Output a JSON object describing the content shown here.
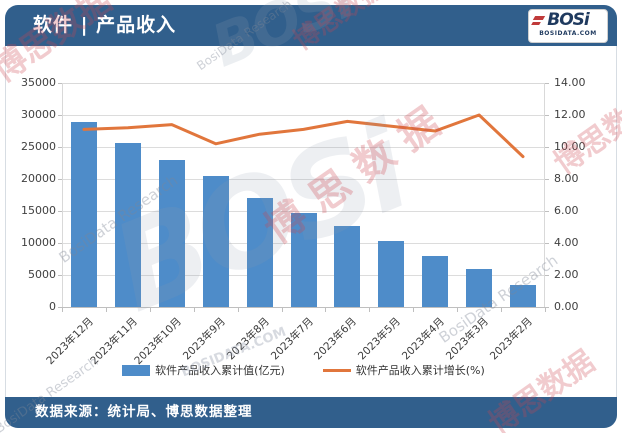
{
  "header": {
    "title": "软件 | 产品收入",
    "logo": {
      "text": "BOSi",
      "subtext": "BOSIDATA.COM"
    }
  },
  "footer": {
    "source": "数据来源：统计局、博思数据整理"
  },
  "watermark": {
    "brand_logo": "BOSi",
    "brand_cn": "博思数据",
    "brand_en": "BosiData Research",
    "site": "BOSIDATA.COM"
  },
  "colors": {
    "header_bg": "#315F8C",
    "bar": "#4E8CC9",
    "line": "#E1763C",
    "grid": "#DCDCDC"
  },
  "chart_data": {
    "type": "bar+line",
    "title": "软件 | 产品收入",
    "categories": [
      "2023年12月",
      "2023年11月",
      "2023年10月",
      "2023年9月",
      "2023年8月",
      "2023年7月",
      "2023年6月",
      "2023年5月",
      "2023年4月",
      "2023年3月",
      "2023年2月"
    ],
    "series": [
      {
        "name": "软件产品收入累计值(亿元)",
        "type": "bar",
        "axis": "left",
        "color": "#4E8CC9",
        "values": [
          28900,
          25700,
          23000,
          20400,
          17100,
          14700,
          12700,
          10300,
          8000,
          5900,
          3400
        ]
      },
      {
        "name": "软件产品收入累计增长(%)",
        "type": "line",
        "axis": "right",
        "color": "#E1763C",
        "values": [
          11.1,
          11.2,
          11.4,
          10.2,
          10.8,
          11.1,
          11.6,
          11.3,
          11.0,
          12.0,
          9.4
        ]
      }
    ],
    "left_axis": {
      "min": 0,
      "max": 35000,
      "step": 5000,
      "ticks": [
        "0",
        "5000",
        "10000",
        "15000",
        "20000",
        "25000",
        "30000",
        "35000"
      ]
    },
    "right_axis": {
      "min": 0,
      "max": 14,
      "step": 2,
      "ticks": [
        "0.00",
        "2.00",
        "4.00",
        "6.00",
        "8.00",
        "10.00",
        "12.00",
        "14.00"
      ]
    },
    "grid": true,
    "legend_position": "bottom"
  }
}
